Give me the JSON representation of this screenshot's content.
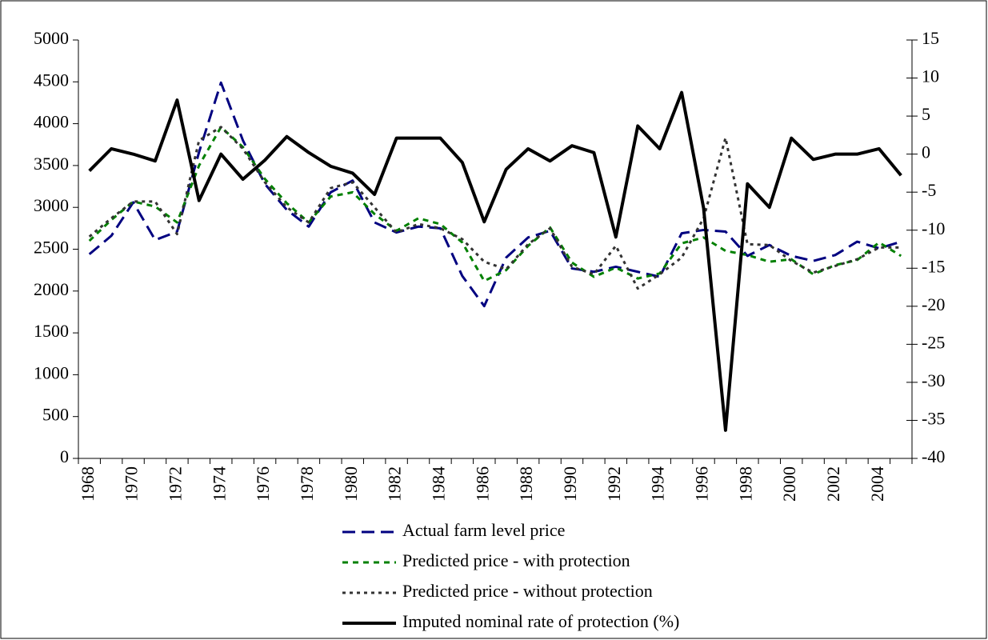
{
  "chart_data": {
    "type": "line",
    "categories": [
      "1968",
      null,
      "1970",
      null,
      "1972",
      null,
      "1974",
      null,
      "1976",
      null,
      "1978",
      null,
      "1980",
      null,
      "1982",
      null,
      "1984",
      null,
      "1986",
      null,
      "1988",
      null,
      "1990",
      null,
      "1992",
      null,
      "1994",
      null,
      "1996",
      null,
      "1998",
      null,
      "2000",
      null,
      "2002",
      null,
      "2004",
      null
    ],
    "series": [
      {
        "name": "Actual farm level price",
        "color": "#000080",
        "dash": "long-dash",
        "values": [
          2440,
          2660,
          3060,
          2610,
          2710,
          3660,
          4490,
          3800,
          3280,
          2970,
          2770,
          3180,
          3320,
          2820,
          2700,
          2770,
          2750,
          2180,
          1820,
          2400,
          2640,
          2720,
          2270,
          2230,
          2290,
          2230,
          2170,
          2690,
          2730,
          2710,
          2420,
          2550,
          2420,
          2360,
          2430,
          2590,
          2510,
          2590
        ]
      },
      {
        "name": "Predicted price - with protection",
        "color": "#008000",
        "dash": "dash",
        "values": [
          2600,
          2850,
          3070,
          3010,
          2820,
          3500,
          3960,
          3720,
          3340,
          3050,
          2820,
          3130,
          3180,
          2920,
          2720,
          2870,
          2800,
          2580,
          2120,
          2250,
          2540,
          2760,
          2340,
          2170,
          2280,
          2150,
          2210,
          2570,
          2640,
          2480,
          2430,
          2350,
          2380,
          2200,
          2310,
          2370,
          2580,
          2420
        ]
      },
      {
        "name": "Predicted price - without protection",
        "color": "#333333",
        "dash": "dot",
        "values": [
          2650,
          2870,
          3070,
          3070,
          2680,
          3800,
          3960,
          3700,
          3300,
          3000,
          2820,
          3230,
          3300,
          3000,
          2700,
          2800,
          2750,
          2620,
          2350,
          2260,
          2560,
          2750,
          2290,
          2200,
          2540,
          2030,
          2200,
          2400,
          2870,
          3830,
          2560,
          2550,
          2360,
          2220,
          2300,
          2380,
          2520,
          2520
        ]
      },
      {
        "name": "Imputed nominal rate of protection (%)",
        "color": "#000000",
        "dash": "solid",
        "axis": "y2",
        "values": [
          -2.2,
          0.7,
          0,
          -0.9,
          7.1,
          -6.1,
          0,
          -3.3,
          -0.8,
          2.3,
          0.2,
          -1.6,
          -2.5,
          -5.3,
          2.1,
          2.1,
          2.1,
          -1.1,
          -8.9,
          -2.0,
          0.7,
          -0.9,
          1.1,
          0.2,
          -10.9,
          3.7,
          0.7,
          8.1,
          -7.1,
          -36.3,
          -3.9,
          -7.0,
          2.1,
          -0.7,
          0,
          0,
          0.7,
          -2.8
        ]
      }
    ],
    "ylim": [
      0,
      5000
    ],
    "yticks": [
      0,
      500,
      1000,
      1500,
      2000,
      2500,
      3000,
      3500,
      4000,
      4500,
      5000
    ],
    "y2lim": [
      -40,
      15
    ],
    "y2ticks": [
      -40,
      -35,
      -30,
      -25,
      -20,
      -15,
      -10,
      -5,
      0,
      5,
      10,
      15
    ],
    "legend": "bottom"
  }
}
